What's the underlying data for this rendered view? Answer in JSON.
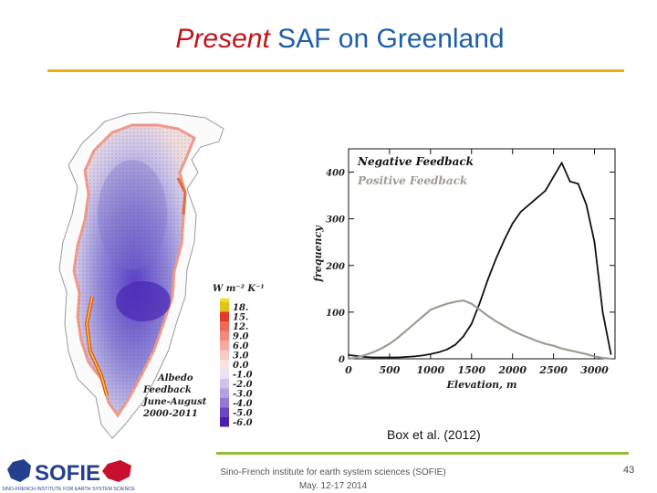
{
  "slide": {
    "title_em": "Present",
    "title_rest": " SAF on Greenland",
    "citation": "Box et al. (2012)",
    "footer_line1": "Sino-French institute for earth system sciences (SOFIE)",
    "footer_line2": "May. 12-17 2014",
    "page_number": "43",
    "logo_text": "SOFIE",
    "logo_subtext": "SINO-FRENCH INSTITUTE FOR EARTH SYSTEM SCIENCE"
  },
  "map": {
    "units": "W m⁻² K⁻¹",
    "label_lines": [
      "Albedo",
      "Feedback",
      "June-August",
      "2000-2011"
    ],
    "legend_ticks": [
      "18.",
      "15.",
      "12.",
      "9.0",
      "6.0",
      "3.0",
      "0.0",
      "-1.0",
      "-2.0",
      "-3.0",
      "-4.0",
      "-5.0",
      "-6.0"
    ],
    "legend_colors": [
      "#e3c21e",
      "#e23a2a",
      "#eb6a58",
      "#f08a7c",
      "#f5aa9e",
      "#f9cbc2",
      "#fbe4df",
      "#e9e3f4",
      "#cfc3ec",
      "#b39fe2",
      "#9378d6",
      "#6d46c6",
      "#4a1fb0"
    ],
    "legend_top_color": "#f0e020"
  },
  "chart_data": {
    "type": "line",
    "xlabel": "Elevation, m",
    "ylabel": "frequency",
    "xlim": [
      0,
      3250
    ],
    "ylim": [
      0,
      450
    ],
    "xticks": [
      0,
      500,
      1000,
      1500,
      2000,
      2500,
      3000
    ],
    "yticks": [
      0,
      100,
      200,
      300,
      400
    ],
    "x": [
      0,
      100,
      200,
      300,
      400,
      500,
      600,
      700,
      800,
      900,
      1000,
      1100,
      1200,
      1300,
      1400,
      1500,
      1600,
      1700,
      1800,
      1900,
      2000,
      2100,
      2200,
      2300,
      2400,
      2500,
      2600,
      2700,
      2800,
      2900,
      3000,
      3100,
      3200
    ],
    "series": [
      {
        "name": "Negative Feedback",
        "color": "#111111",
        "values": [
          8,
          6,
          4,
          3,
          3,
          3,
          3,
          4,
          5,
          7,
          10,
          14,
          20,
          30,
          48,
          75,
          120,
          170,
          215,
          255,
          290,
          315,
          330,
          345,
          360,
          390,
          420,
          380,
          375,
          330,
          250,
          100,
          10
        ]
      },
      {
        "name": "Positive Feedback",
        "color": "#a09b93",
        "values": [
          0,
          3,
          8,
          14,
          22,
          32,
          45,
          60,
          75,
          90,
          105,
          112,
          118,
          122,
          125,
          118,
          105,
          92,
          80,
          70,
          60,
          52,
          45,
          38,
          32,
          28,
          22,
          18,
          14,
          10,
          5,
          2,
          0
        ]
      }
    ]
  }
}
